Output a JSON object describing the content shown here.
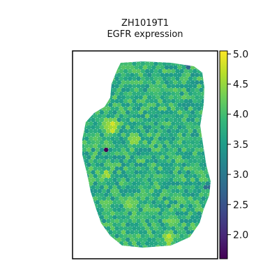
{
  "chart_data": {
    "type": "scatter",
    "title": "ZH1019T1",
    "subtitle": "EGFR expression",
    "xlabel": "",
    "ylabel": "",
    "grid": false,
    "legend": "none",
    "colorbar": {
      "label": "",
      "range": [
        1.6,
        5.05
      ],
      "ticks": [
        2.0,
        2.5,
        3.0,
        3.5,
        4.0,
        4.5,
        5.0
      ],
      "tick_labels": [
        "2.0",
        "2.5",
        "3.0",
        "3.5",
        "4.0",
        "4.5",
        "5.0"
      ],
      "colormap": "viridis",
      "position": "right"
    },
    "typical_value": 3.8,
    "notable_spots": [
      {
        "region": "left, upper-middle",
        "value": 1.7
      },
      {
        "region": "right edge, lower-middle",
        "value": 2.5
      },
      {
        "region": "top, upper-right",
        "value": 2.2
      },
      {
        "region": "upper-left lobe",
        "value": 4.7
      },
      {
        "region": "left, middle",
        "value": 4.6
      },
      {
        "region": "center-left",
        "value": 4.5
      },
      {
        "region": "bottom-center",
        "value": 4.6
      }
    ]
  },
  "colors": {
    "frame": "#000000",
    "background": "#ffffff",
    "viridis": [
      "#440154",
      "#482878",
      "#3e4989",
      "#31688e",
      "#26828e",
      "#1f9e89",
      "#35b779",
      "#6ece58",
      "#b5de2b",
      "#fde725"
    ]
  }
}
